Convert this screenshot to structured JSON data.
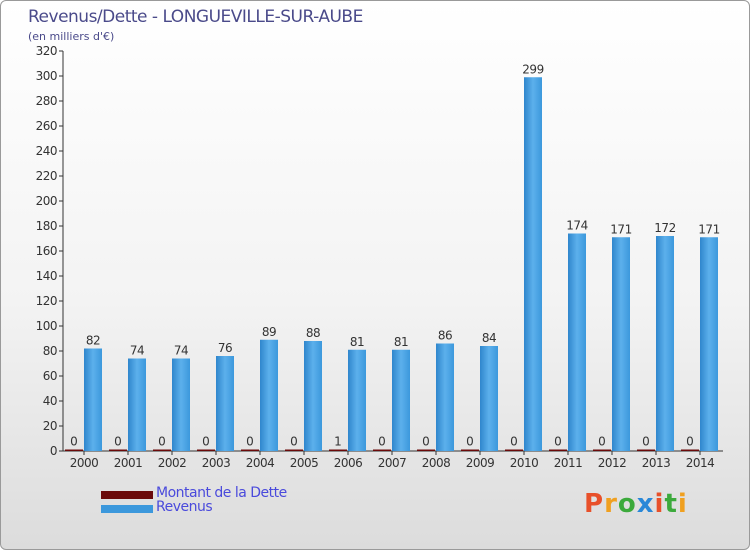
{
  "title": "Revenus/Dette - LONGUEVILLE-SUR-AUBE",
  "subtitle": "(en milliers d'€)",
  "colors": {
    "dette": "#6b0a0a",
    "revenus": "#3c98dc",
    "title": "#4a4a8a",
    "legend_text": "#4a4adc"
  },
  "legend": {
    "items": [
      {
        "label": "Montant de la Dette",
        "color": "#6b0a0a"
      },
      {
        "label": "Revenus",
        "color": "#3c98dc"
      }
    ]
  },
  "logo": {
    "text": "Proxiti"
  },
  "chart_data": {
    "type": "bar",
    "categories": [
      "2000",
      "2001",
      "2002",
      "2003",
      "2004",
      "2005",
      "2006",
      "2007",
      "2008",
      "2009",
      "2010",
      "2011",
      "2012",
      "2013",
      "2014"
    ],
    "series": [
      {
        "name": "Montant de la Dette",
        "values": [
          0,
          0,
          0,
          0,
          0,
          0,
          1,
          0,
          0,
          0,
          0,
          0,
          0,
          0,
          0
        ]
      },
      {
        "name": "Revenus",
        "values": [
          82,
          74,
          74,
          76,
          89,
          88,
          81,
          81,
          86,
          84,
          299,
          174,
          171,
          172,
          171
        ]
      }
    ],
    "ylim": [
      0,
      320
    ],
    "yticks": [
      0,
      20,
      40,
      60,
      80,
      100,
      120,
      140,
      160,
      180,
      200,
      220,
      240,
      260,
      280,
      300,
      320
    ],
    "grid": false,
    "legend_position": "bottom-left"
  }
}
